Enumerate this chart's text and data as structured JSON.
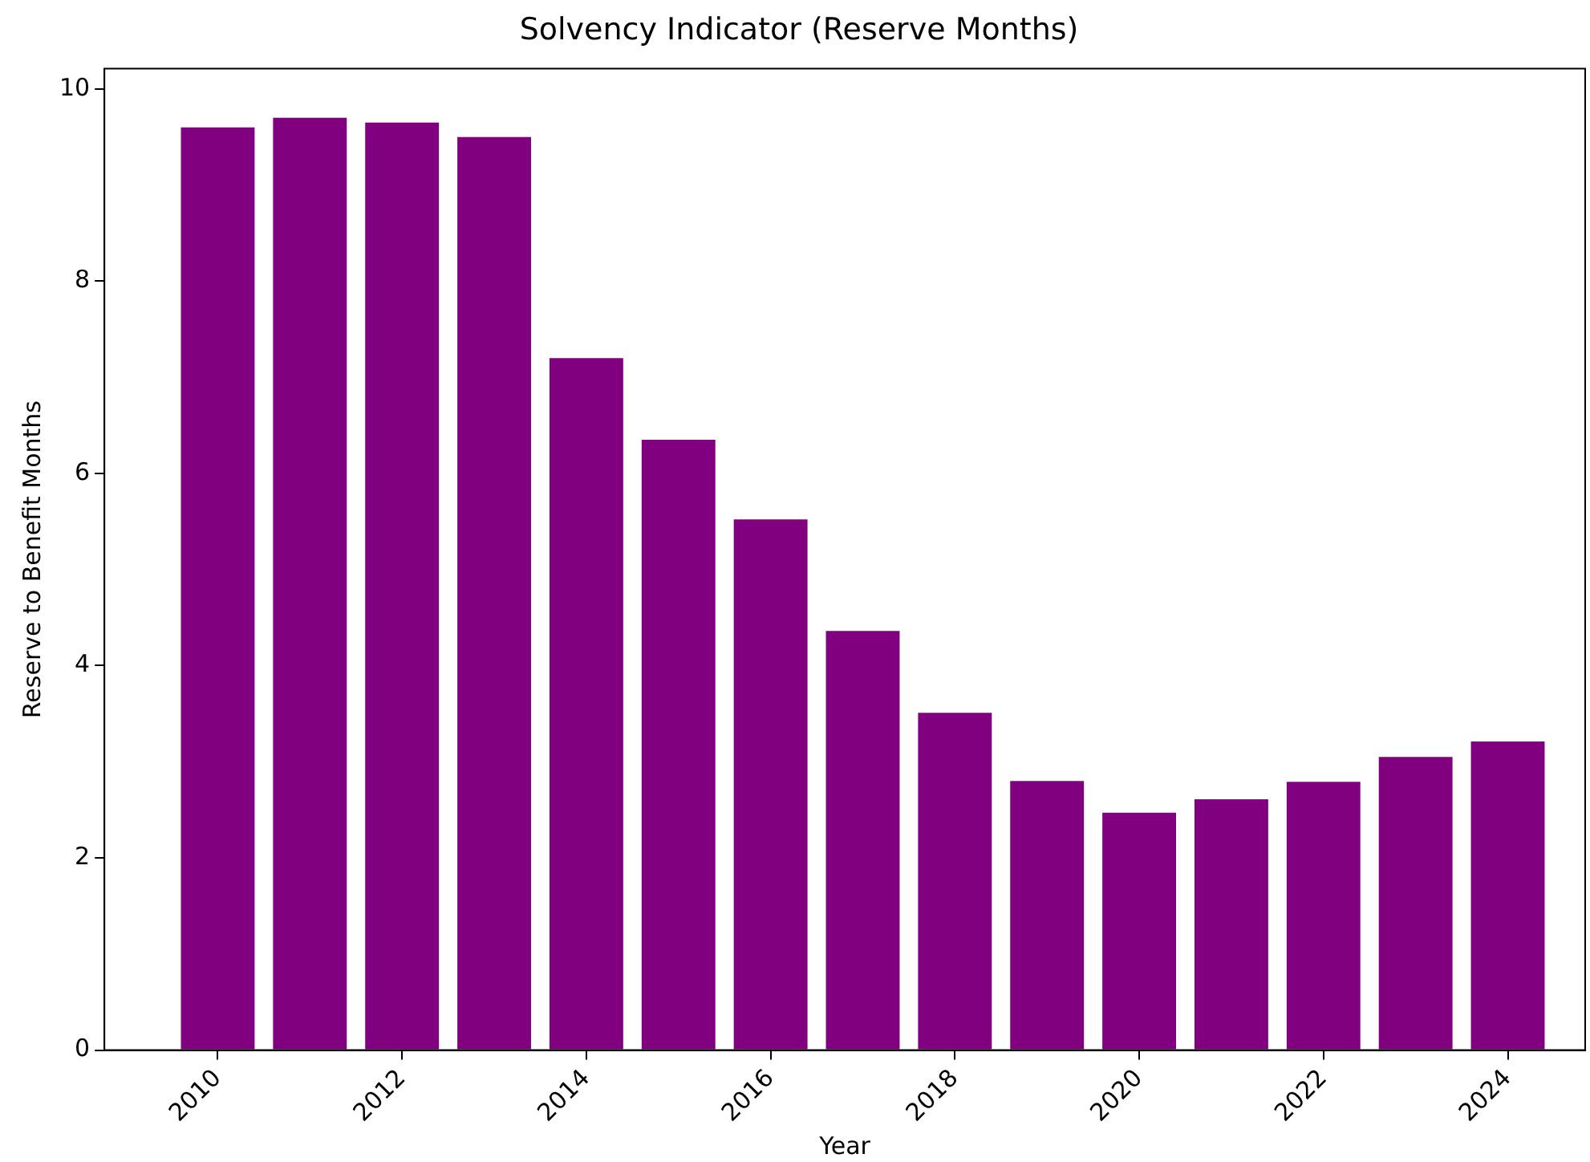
{
  "chart_data": {
    "type": "bar",
    "title": "Solvency Indicator (Reserve Months)",
    "xlabel": "Year",
    "ylabel": "Reserve to Benefit Months",
    "x": [
      2010,
      2011,
      2012,
      2013,
      2014,
      2015,
      2016,
      2017,
      2018,
      2019,
      2020,
      2021,
      2022,
      2023,
      2024
    ],
    "values": [
      9.6,
      9.7,
      9.65,
      9.5,
      7.2,
      6.35,
      5.52,
      4.36,
      3.51,
      2.8,
      2.47,
      2.61,
      2.79,
      3.05,
      3.21
    ],
    "color": "#800080",
    "xlim": [
      2008.77,
      2024.84
    ],
    "xticks": [
      2010,
      2012,
      2014,
      2016,
      2018,
      2020,
      2022,
      2024
    ],
    "ylim": [
      0,
      10.21
    ],
    "yticks": [
      0,
      2,
      4,
      6,
      8,
      10
    ],
    "grid": false,
    "legend": false
  }
}
